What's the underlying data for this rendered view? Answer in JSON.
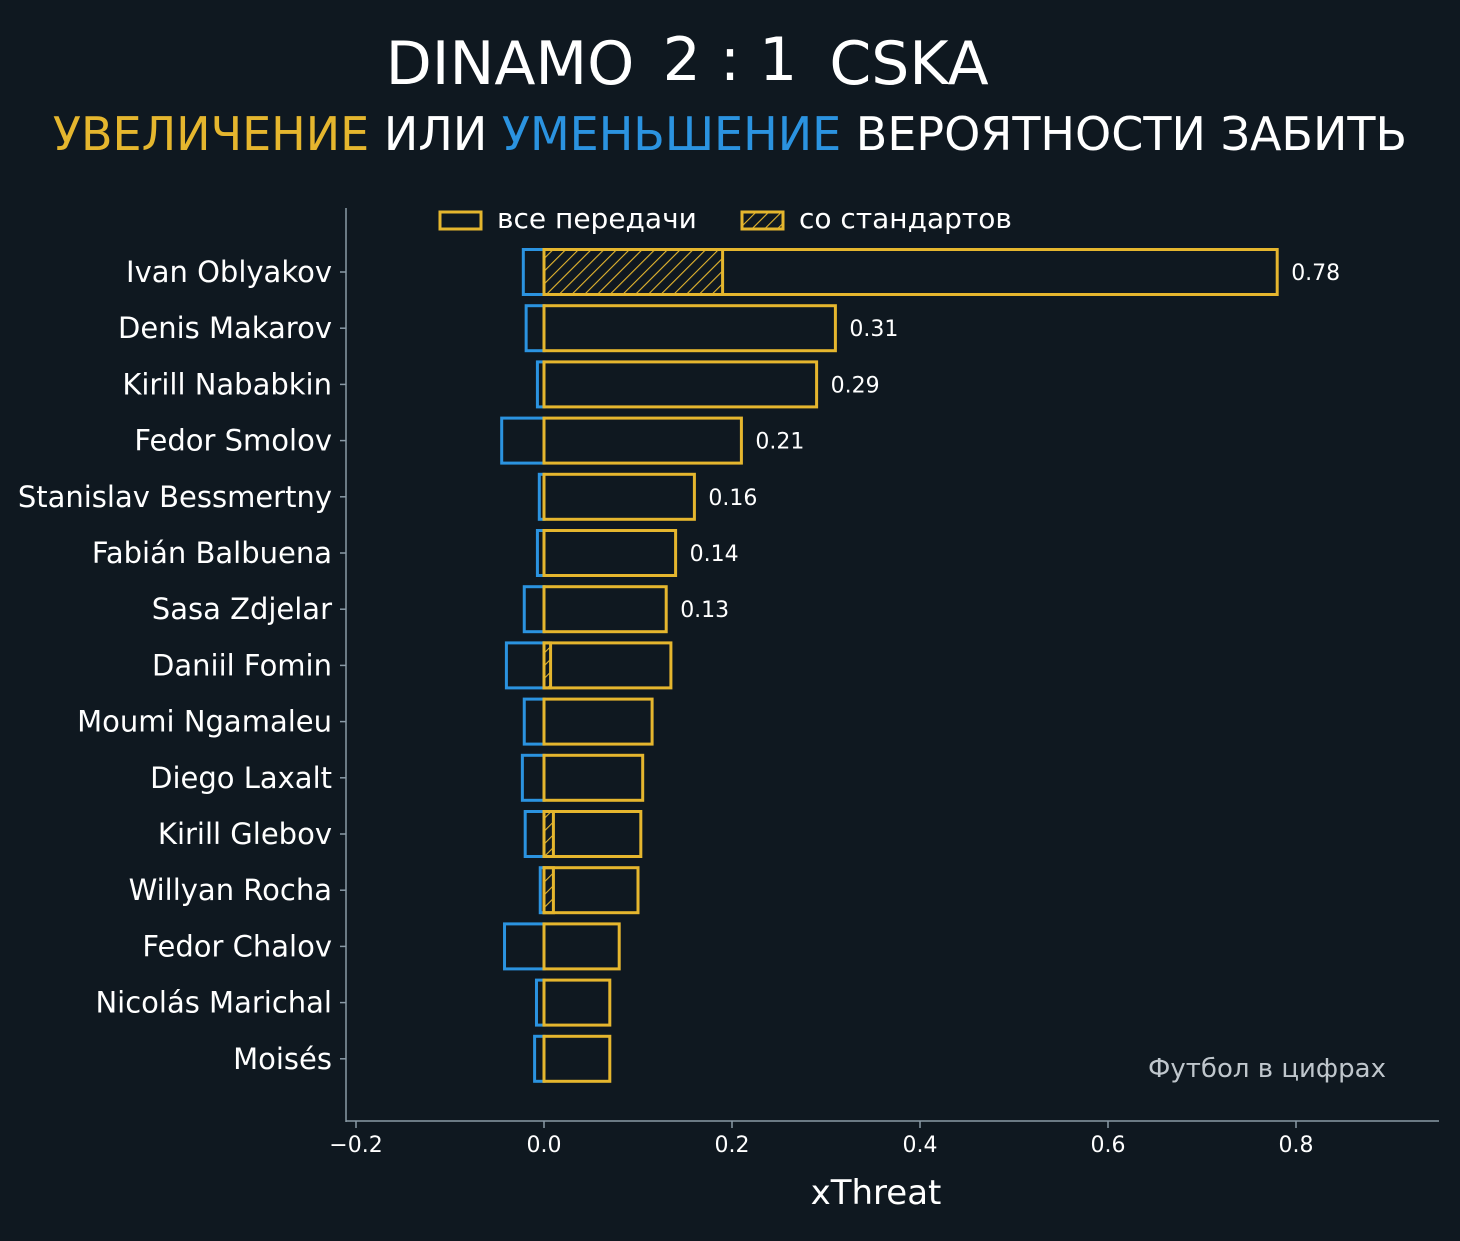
{
  "colors": {
    "background": "#0f1820",
    "increase": "#e5b62e",
    "decrease": "#2b93e0",
    "axis": "#8a9aa6",
    "text": "#ffffff"
  },
  "header": {
    "home_team": "DINAMO",
    "score": "2 : 1",
    "away_team": "CSKA",
    "subtitle": {
      "word_increase": "УВЕЛИЧЕНИЕ",
      "word_or": "ИЛИ",
      "word_decrease": "УМЕНЬШЕНИЕ",
      "word_rest": "ВЕРОЯТНОСТИ ЗАБИТЬ"
    }
  },
  "legend": {
    "all_passes": "все передачи",
    "set_pieces": "со стандартов"
  },
  "watermark": "Футбол в цифрах",
  "chart_data": {
    "type": "bar",
    "orientation": "horizontal",
    "xlabel": "xThreat",
    "xlim": [
      -0.2,
      0.95
    ],
    "xticks": [
      -0.2,
      0.0,
      0.2,
      0.4,
      0.6,
      0.8
    ],
    "xtick_labels": [
      "−0.2",
      "0.0",
      "0.2",
      "0.4",
      "0.6",
      "0.8"
    ],
    "legend_placement": "top",
    "grid": false,
    "categories": [
      "Ivan Oblyakov",
      "Denis Makarov",
      "Kirill Nababkin",
      "Fedor Smolov",
      "Stanislav Bessmertny",
      "Fabián Balbuena",
      "Sasa Zdjelar",
      "Daniil Fomin",
      "Moumi Ngamaleu",
      "Diego Laxalt",
      "Kirill Glebov",
      "Willyan Rocha",
      "Fedor Chalov",
      "Nicolás Marichal",
      "Moisés"
    ],
    "series": [
      {
        "name": "все передачи",
        "values": [
          0.78,
          0.31,
          0.29,
          0.21,
          0.16,
          0.14,
          0.13,
          0.135,
          0.115,
          0.105,
          0.103,
          0.1,
          0.08,
          0.07,
          0.07
        ]
      },
      {
        "name": "со стандартов",
        "values": [
          0.19,
          0.0,
          0.0,
          0.0,
          0.0,
          0.0,
          0.0,
          0.007,
          0.0,
          0.0,
          0.01,
          0.01,
          0.0,
          0.0,
          0.0
        ]
      },
      {
        "values": [
          -0.022,
          -0.019,
          -0.007,
          -0.045,
          -0.005,
          -0.007,
          -0.021,
          -0.04,
          -0.021,
          -0.023,
          -0.02,
          -0.004,
          -0.042,
          -0.008,
          -0.01
        ]
      }
    ],
    "data_labels": [
      "0.78",
      "0.31",
      "0.29",
      "0.21",
      "0.16",
      "0.14",
      "0.13",
      "",
      "",
      "",
      "",
      "",
      "",
      "",
      ""
    ]
  }
}
